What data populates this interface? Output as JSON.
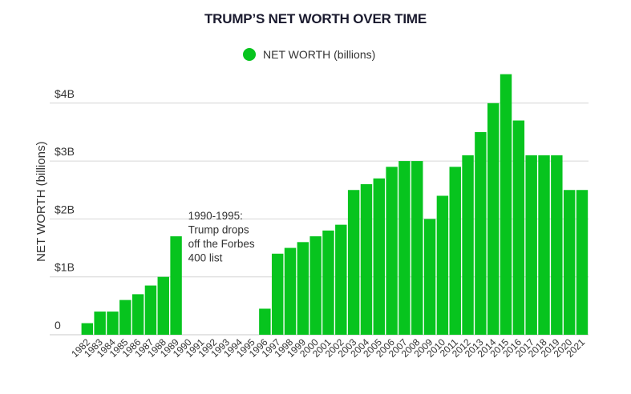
{
  "chart_data": {
    "type": "bar",
    "title": "TRUMP’S NET WORTH OVER TIME",
    "legend": {
      "label": "NET WORTH (billions)",
      "color": "#07c41e",
      "position": "top-center"
    },
    "xlabel": "",
    "ylabel": "NET WORTH (billions)",
    "ylim": [
      0,
      4.6
    ],
    "grid": true,
    "yticks": [
      {
        "value": 0,
        "label": "0"
      },
      {
        "value": 1,
        "label": "$1B"
      },
      {
        "value": 2,
        "label": "$2B"
      },
      {
        "value": 3,
        "label": "$3B"
      },
      {
        "value": 4,
        "label": "$4B"
      }
    ],
    "categories": [
      "1982",
      "1983",
      "1984",
      "1985",
      "1986",
      "1987",
      "1988",
      "1989",
      "1990",
      "1991",
      "1992",
      "1993",
      "1994",
      "1995",
      "1996",
      "1997",
      "1998",
      "1999",
      "2000",
      "2001",
      "2002",
      "2003",
      "2004",
      "2005",
      "2006",
      "2007",
      "2008",
      "2009",
      "2010",
      "2011",
      "2012",
      "2013",
      "2014",
      "2015",
      "2016",
      "2017",
      "2018",
      "2019",
      "2020",
      "2021"
    ],
    "series": [
      {
        "name": "NET WORTH (billions)",
        "color": "#07c41e",
        "values": [
          0.2,
          0.4,
          0.4,
          0.6,
          0.7,
          0.85,
          1.0,
          1.7,
          null,
          null,
          null,
          null,
          null,
          null,
          0.45,
          1.4,
          1.5,
          1.6,
          1.7,
          1.8,
          1.9,
          2.5,
          2.6,
          2.7,
          2.9,
          3.0,
          3.0,
          2.0,
          2.4,
          2.9,
          3.1,
          3.5,
          4.0,
          4.5,
          3.7,
          3.1,
          3.1,
          3.1,
          2.5,
          2.5
        ]
      }
    ],
    "annotations": [
      {
        "category": "1990",
        "lines": [
          "1990-1995:",
          "Trump drops",
          "off the Forbes",
          "400 list"
        ]
      }
    ]
  }
}
